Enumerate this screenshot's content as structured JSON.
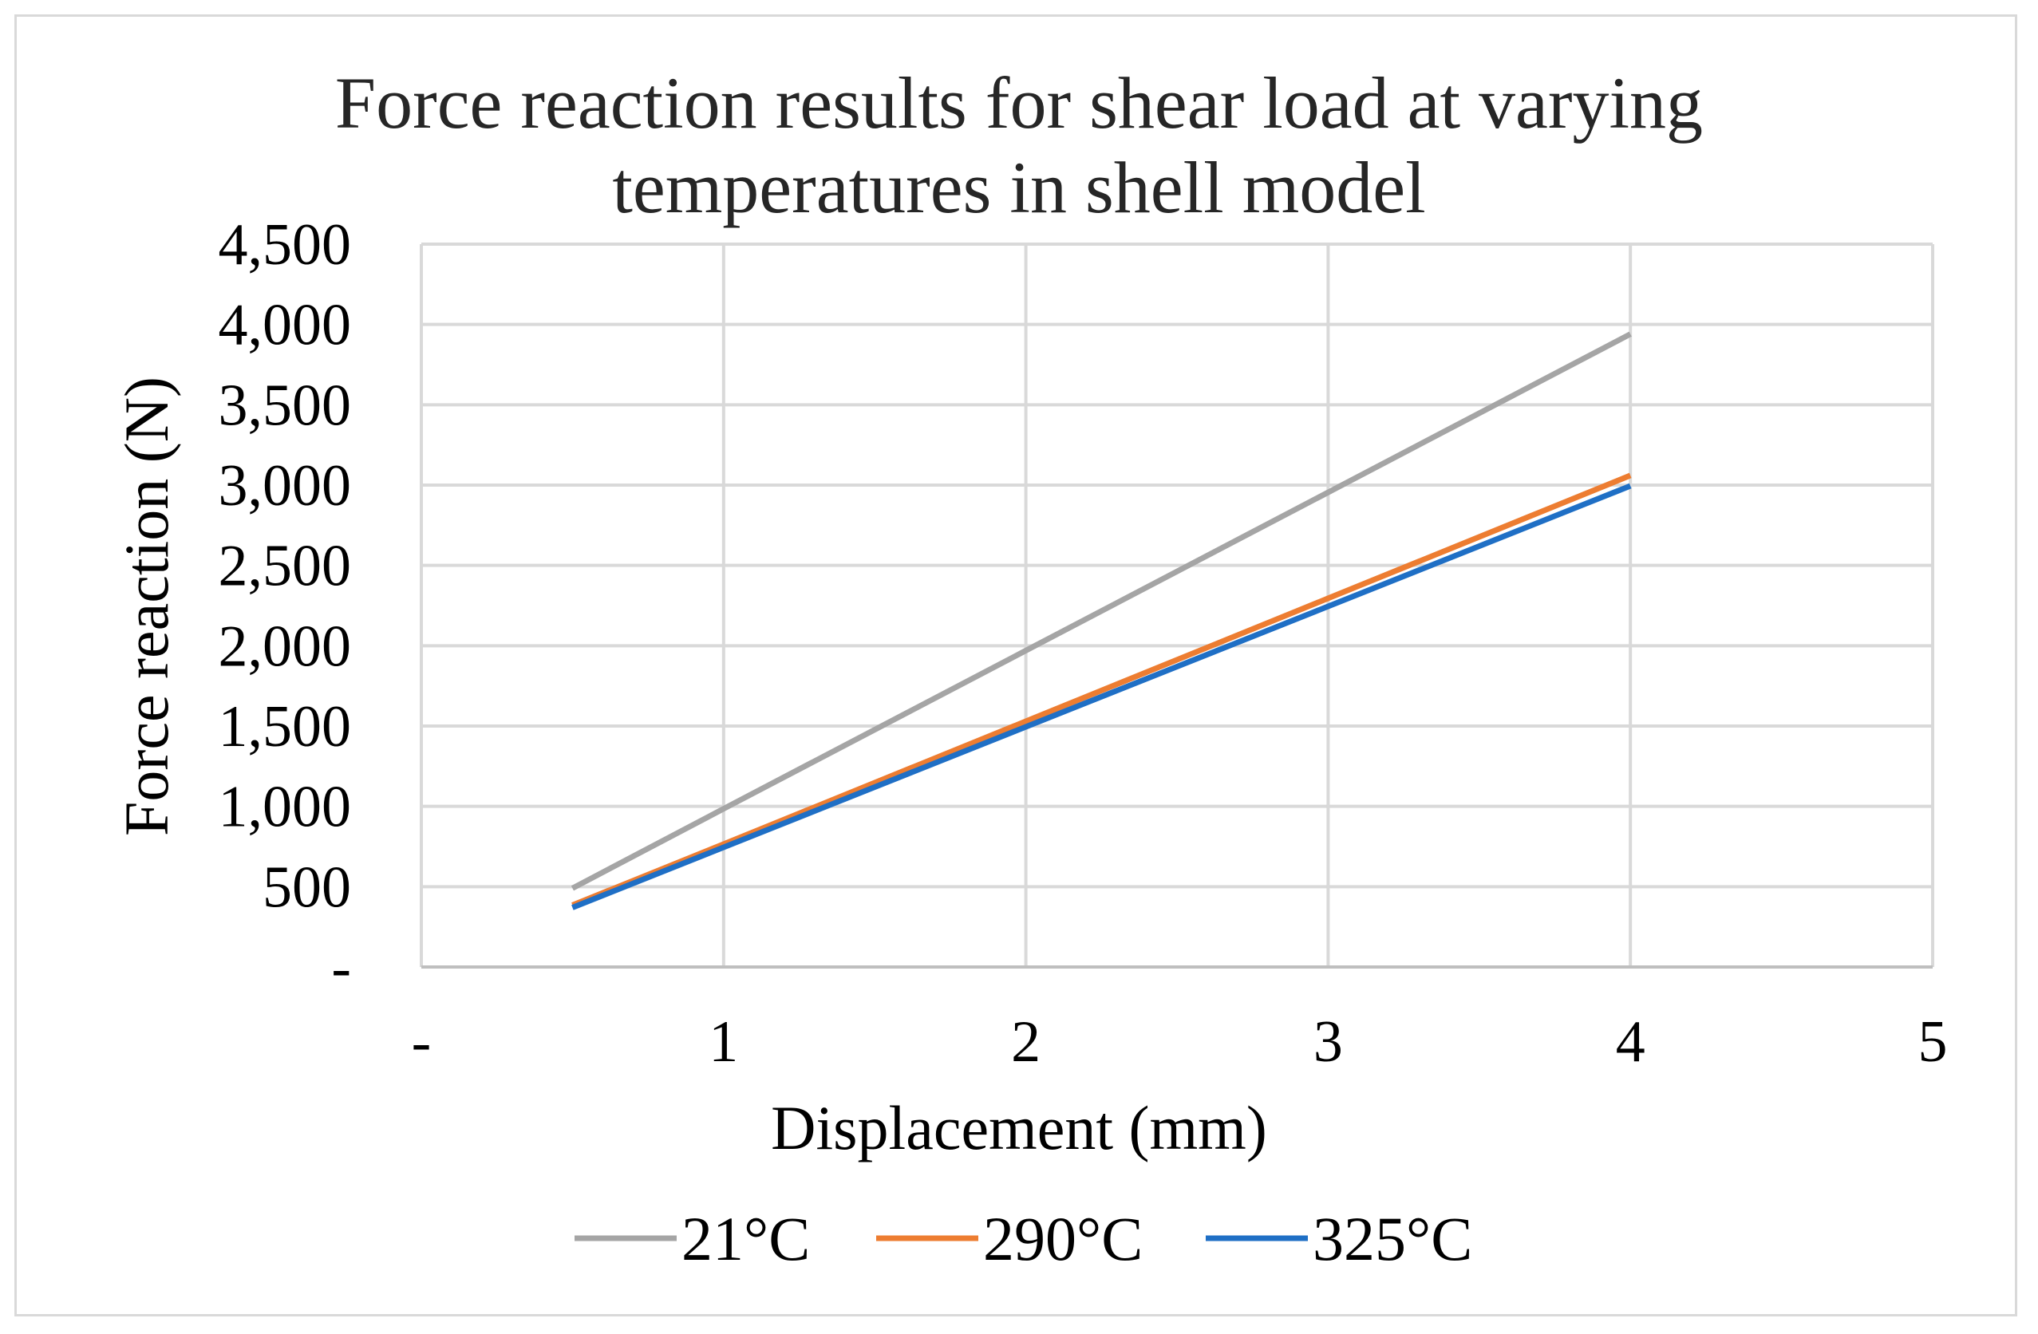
{
  "chart_data": {
    "type": "line",
    "title": [
      "Force reaction results for shear load at varying",
      "temperatures in shell model"
    ],
    "xlabel": "Displacement (mm)",
    "ylabel": "Force reaction (N)",
    "xlim": [
      0,
      5
    ],
    "ylim": [
      0,
      4500
    ],
    "x_ticks": [
      {
        "value": 0,
        "label": "-"
      },
      {
        "value": 1,
        "label": "1"
      },
      {
        "value": 2,
        "label": "2"
      },
      {
        "value": 3,
        "label": "3"
      },
      {
        "value": 4,
        "label": "4"
      },
      {
        "value": 5,
        "label": "5"
      }
    ],
    "y_ticks": [
      {
        "value": 0,
        "label": "-"
      },
      {
        "value": 500,
        "label": "500"
      },
      {
        "value": 1000,
        "label": "1,000"
      },
      {
        "value": 1500,
        "label": "1,500"
      },
      {
        "value": 2000,
        "label": "2,000"
      },
      {
        "value": 2500,
        "label": "2,500"
      },
      {
        "value": 3000,
        "label": "3,000"
      },
      {
        "value": 3500,
        "label": "3,500"
      },
      {
        "value": 4000,
        "label": "4,000"
      },
      {
        "value": 4500,
        "label": "4,500"
      }
    ],
    "grid": true,
    "legend_position": "bottom",
    "series": [
      {
        "name": "21°C",
        "color": "#a5a5a5",
        "x": [
          0.5,
          1,
          2,
          3,
          4
        ],
        "values": [
          490,
          985,
          1970,
          2955,
          3940
        ]
      },
      {
        "name": "290°C",
        "color": "#ed7d31",
        "x": [
          0.5,
          1,
          2,
          3,
          4
        ],
        "values": [
          385,
          765,
          1530,
          2295,
          3060
        ]
      },
      {
        "name": "325°C",
        "color": "#1f6fc5",
        "x": [
          0.5,
          1,
          2,
          3,
          4
        ],
        "values": [
          370,
          745,
          1495,
          2245,
          2995
        ]
      }
    ]
  }
}
